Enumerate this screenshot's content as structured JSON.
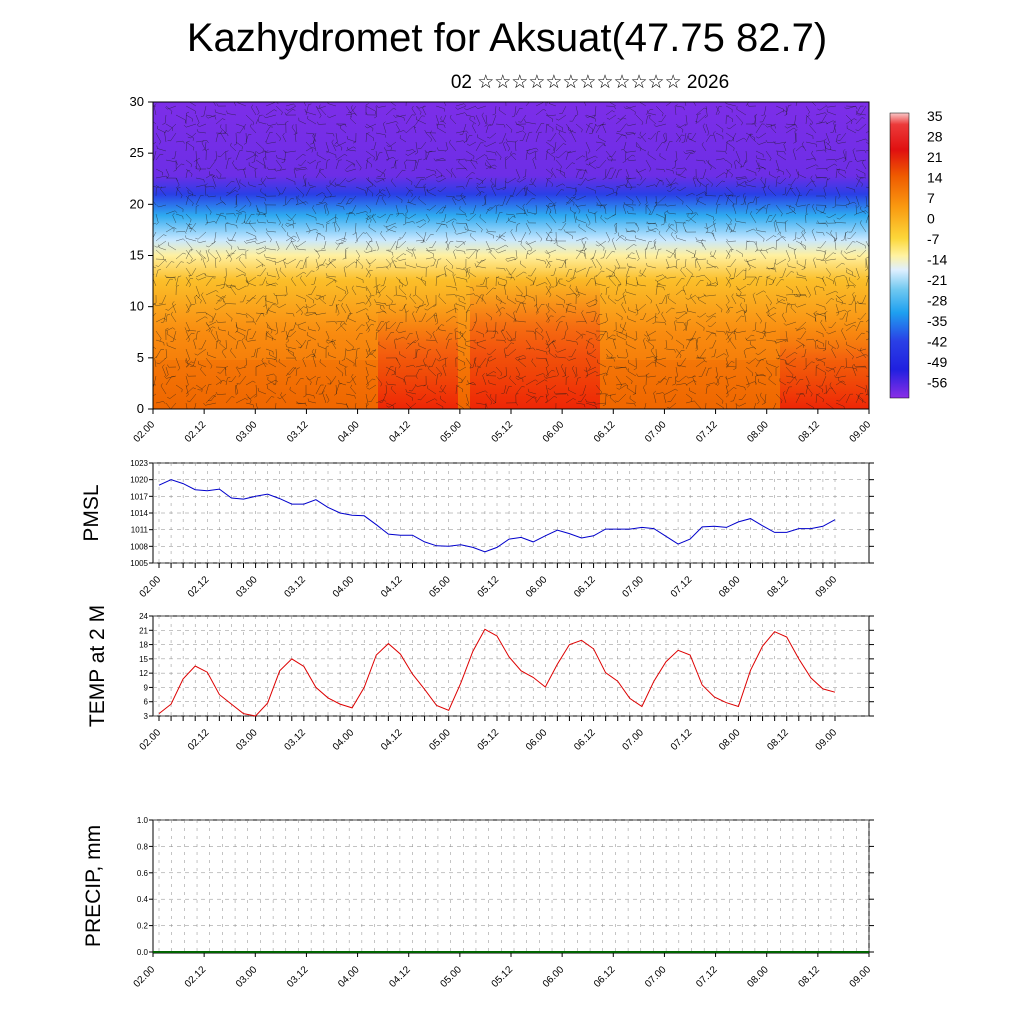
{
  "header": {
    "title": "Kazhydromet for Aksuat(47.75 82.7)",
    "subtitle": "02 ☆☆☆☆☆☆☆☆☆☆☆☆ 2026"
  },
  "time_labels": [
    "02.00",
    "02.12",
    "03.00",
    "03.12",
    "04.00",
    "04.12",
    "05.00",
    "05.12",
    "06.00",
    "06.12",
    "07.00",
    "07.12",
    "08.00",
    "08.12",
    "09.00"
  ],
  "colorbar": {
    "labels": [
      "35",
      "28",
      "21",
      "14",
      "7",
      "0",
      "-7",
      "-14",
      "-21",
      "-28",
      "-35",
      "-42",
      "-49",
      "-56"
    ]
  },
  "colors": {
    "pmsl_line": "#0000cc",
    "temp_line": "#dd0000",
    "precip_baseline": "#006400"
  },
  "chart_data": [
    {
      "type": "heatmap",
      "title": "",
      "ylabel": "",
      "ylim": [
        0,
        30
      ],
      "yticks": [
        "0",
        "5",
        "10",
        "15",
        "20",
        "25",
        "30"
      ],
      "xticks": [
        "02.00",
        "02.12",
        "03.00",
        "03.12",
        "04.00",
        "04.12",
        "05.00",
        "05.12",
        "06.00",
        "06.12",
        "07.00",
        "07.12",
        "08.00",
        "08.12",
        "09.00"
      ],
      "colorbar_range": [
        -56,
        35
      ],
      "overlay": "wind barbs"
    },
    {
      "type": "line",
      "ylabel": "PMSL",
      "ylim": [
        1005,
        1023
      ],
      "yticks": [
        "1005",
        "1008",
        "1011",
        "1014",
        "1017",
        "1020",
        "1023"
      ],
      "x": [
        "02.00",
        "02.03",
        "02.06",
        "02.09",
        "02.12",
        "02.15",
        "02.18",
        "02.21",
        "03.00",
        "03.03",
        "03.06",
        "03.09",
        "03.12",
        "03.15",
        "03.18",
        "03.21",
        "04.00",
        "04.03",
        "04.06",
        "04.09",
        "04.12",
        "04.15",
        "04.18",
        "04.21",
        "05.00",
        "05.03",
        "05.06",
        "05.09",
        "05.12",
        "05.15",
        "05.18",
        "05.21",
        "06.00",
        "06.03",
        "06.06",
        "06.09",
        "06.12",
        "06.15",
        "06.18",
        "06.21",
        "07.00",
        "07.03",
        "07.06",
        "07.09",
        "07.12",
        "07.15",
        "07.18",
        "07.21",
        "08.00",
        "08.03",
        "08.06",
        "08.09",
        "08.12",
        "08.15",
        "08.18",
        "08.21",
        "09.00"
      ],
      "series": [
        {
          "values": [
            1019.0,
            1020.0,
            1019.3,
            1018.2,
            1018.0,
            1018.3,
            1016.7,
            1016.5,
            1017.0,
            1017.4,
            1016.6,
            1015.6,
            1015.6,
            1016.4,
            1015.0,
            1014.0,
            1013.6,
            1013.5,
            1011.9,
            1010.2,
            1010.0,
            1010.0,
            1008.8,
            1008.1,
            1008.0,
            1008.3,
            1007.8,
            1007.0,
            1007.8,
            1009.3,
            1009.6,
            1008.8,
            1009.9,
            1010.9,
            1010.3,
            1009.5,
            1009.9,
            1011.1,
            1011.1,
            1011.1,
            1011.4,
            1011.2,
            1009.8,
            1008.4,
            1009.3,
            1011.5,
            1011.6,
            1011.4,
            1012.4,
            1013.0,
            1011.7,
            1010.5,
            1010.5,
            1011.2,
            1011.2,
            1011.6,
            1012.8
          ]
        }
      ]
    },
    {
      "type": "line",
      "ylabel": "TEMP at 2 M",
      "ylim": [
        3,
        24
      ],
      "yticks": [
        "3",
        "6",
        "9",
        "12",
        "15",
        "18",
        "21",
        "24"
      ],
      "x": [
        "02.00",
        "02.03",
        "02.06",
        "02.09",
        "02.12",
        "02.15",
        "02.18",
        "02.21",
        "03.00",
        "03.03",
        "03.06",
        "03.09",
        "03.12",
        "03.15",
        "03.18",
        "03.21",
        "04.00",
        "04.03",
        "04.06",
        "04.09",
        "04.12",
        "04.15",
        "04.18",
        "04.21",
        "05.00",
        "05.03",
        "05.06",
        "05.09",
        "05.12",
        "05.15",
        "05.18",
        "05.21",
        "06.00",
        "06.03",
        "06.06",
        "06.09",
        "06.12",
        "06.15",
        "06.18",
        "06.21",
        "07.00",
        "07.03",
        "07.06",
        "07.09",
        "07.12",
        "07.15",
        "07.18",
        "07.21",
        "08.00",
        "08.03",
        "08.06",
        "08.09",
        "08.12",
        "08.15",
        "08.18",
        "08.21",
        "09.00"
      ],
      "series": [
        {
          "values": [
            3.5,
            5.5,
            10.8,
            13.5,
            12.2,
            7.5,
            5.5,
            3.5,
            3.0,
            5.7,
            12.5,
            15.0,
            13.4,
            9.0,
            6.8,
            5.5,
            4.7,
            9.0,
            15.8,
            18.2,
            16.0,
            11.8,
            8.6,
            5.2,
            4.2,
            9.9,
            16.6,
            21.2,
            19.8,
            15.4,
            12.5,
            11.1,
            9.1,
            13.9,
            18.0,
            18.9,
            17.1,
            12.1,
            10.3,
            6.7,
            5.0,
            10.3,
            14.4,
            16.8,
            15.8,
            9.5,
            7.0,
            5.8,
            5.0,
            12.6,
            17.7,
            20.7,
            19.6,
            15.0,
            11.0,
            8.7,
            8.0
          ]
        }
      ]
    },
    {
      "type": "bar",
      "ylabel": "PRECIP, mm",
      "ylim": [
        0.0,
        1.0
      ],
      "yticks": [
        "0.0",
        "0.2",
        "0.4",
        "0.6",
        "0.8",
        "1.0"
      ],
      "categories": [
        "02.00",
        "02.12",
        "03.00",
        "03.12",
        "04.00",
        "04.12",
        "05.00",
        "05.12",
        "06.00",
        "06.12",
        "07.00",
        "07.12",
        "08.00",
        "08.12",
        "09.00"
      ],
      "values": [
        0,
        0,
        0,
        0,
        0,
        0,
        0,
        0,
        0,
        0,
        0,
        0,
        0,
        0,
        0
      ]
    }
  ]
}
